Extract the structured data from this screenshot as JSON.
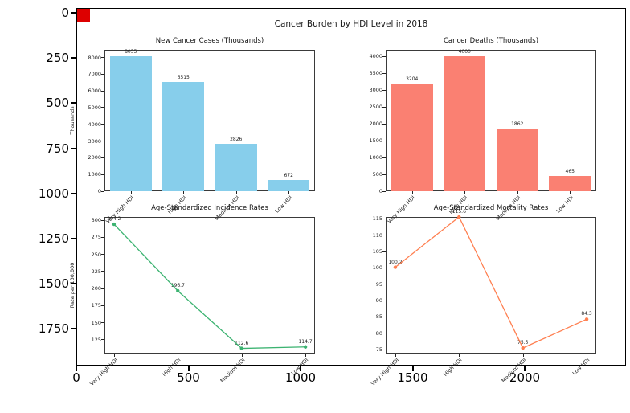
{
  "figure": {
    "suptitle": "Cancer Burden by HDI Level in 2018",
    "red_marker_color": "#dd0000"
  },
  "outer_axes": {
    "y_tick_labels": [
      "0",
      "250",
      "500",
      "750",
      "1000",
      "1250",
      "1500",
      "1750"
    ],
    "x_tick_labels": [
      "0",
      "500",
      "1000",
      "1500",
      "2000"
    ]
  },
  "chart_data": [
    {
      "id": "new-cancer-cases",
      "type": "bar",
      "title": "New Cancer Cases (Thousands)",
      "categories": [
        "Very High HDI",
        "High HDI",
        "Medium HDI",
        "Low HDI"
      ],
      "values": [
        8055,
        6515,
        2826,
        672
      ],
      "ylabel": "Thousands",
      "yticks": [
        0,
        1000,
        2000,
        3000,
        4000,
        5000,
        6000,
        7000,
        8000
      ],
      "ylim": [
        0,
        8460
      ],
      "color": "#87ceeb"
    },
    {
      "id": "cancer-deaths",
      "type": "bar",
      "title": "Cancer Deaths (Thousands)",
      "categories": [
        "Very High HDI",
        "High HDI",
        "Medium HDI",
        "Low HDI"
      ],
      "values": [
        3204,
        4000,
        1862,
        465
      ],
      "ylabel": "",
      "yticks": [
        0,
        500,
        1000,
        1500,
        2000,
        2500,
        3000,
        3500,
        4000
      ],
      "ylim": [
        0,
        4200
      ],
      "color": "#fa8072"
    },
    {
      "id": "age-standardized-incidence-rates",
      "type": "line",
      "title": "Age-Standardized Incidence Rates",
      "categories": [
        "Very High HDI",
        "High HDI",
        "Medium HDI",
        "Low HDI"
      ],
      "values": [
        294.2,
        196.7,
        112.6,
        114.7
      ],
      "ylabel": "Rate per 100,000",
      "yticks": [
        125,
        150,
        175,
        200,
        225,
        250,
        275,
        300
      ],
      "ylim": [
        105,
        304.8
      ],
      "color": "#3cb371"
    },
    {
      "id": "age-standardized-mortality-rates",
      "type": "line",
      "title": "Age-Standardized Mortality Rates",
      "categories": [
        "Very High HDI",
        "High HDI",
        "Medium HDI",
        "Low HDI"
      ],
      "values": [
        100.2,
        115.6,
        75.5,
        84.3
      ],
      "ylabel": "",
      "yticks": [
        75,
        80,
        85,
        90,
        95,
        100,
        105,
        110,
        115
      ],
      "ylim": [
        73.8,
        115.6
      ],
      "color": "#ff7f50"
    }
  ]
}
